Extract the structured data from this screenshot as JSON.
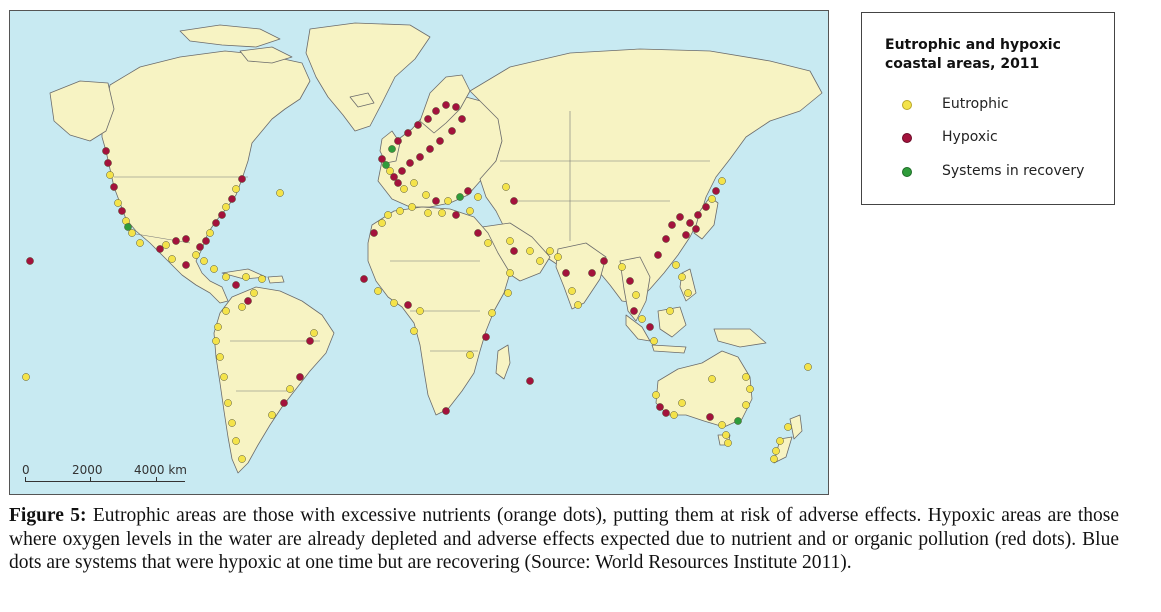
{
  "legend": {
    "title_line1": "Eutrophic and hypoxic",
    "title_line2": "coastal areas, 2011",
    "items": [
      {
        "label": "Eutrophic",
        "color": "#f4e34a"
      },
      {
        "label": "Hypoxic",
        "color": "#a3123c"
      },
      {
        "label": "Systems in recovery",
        "color": "#2f9c3a"
      }
    ]
  },
  "scale": {
    "tick_0": "0",
    "tick_1": "2000",
    "tick_2": "4000 km"
  },
  "caption": {
    "label": "Figure 5:",
    "text": " Eutrophic areas are those with excessive nutrients (orange dots), putting them at risk of adverse effects. Hypoxic areas are those where oxygen levels in the water are already depleted and adverse effects expected due to nutrient and or organic pollution (red dots). Blue dots are systems that were hypoxic at one time but are recovering (Source: World Resources Institute 2011)."
  },
  "colors": {
    "ocean": "#c8eaf2",
    "land": "#f7f3c3",
    "eutrophic": "#f4e34a",
    "hypoxic": "#a3123c",
    "recovery": "#2f9c3a"
  }
}
